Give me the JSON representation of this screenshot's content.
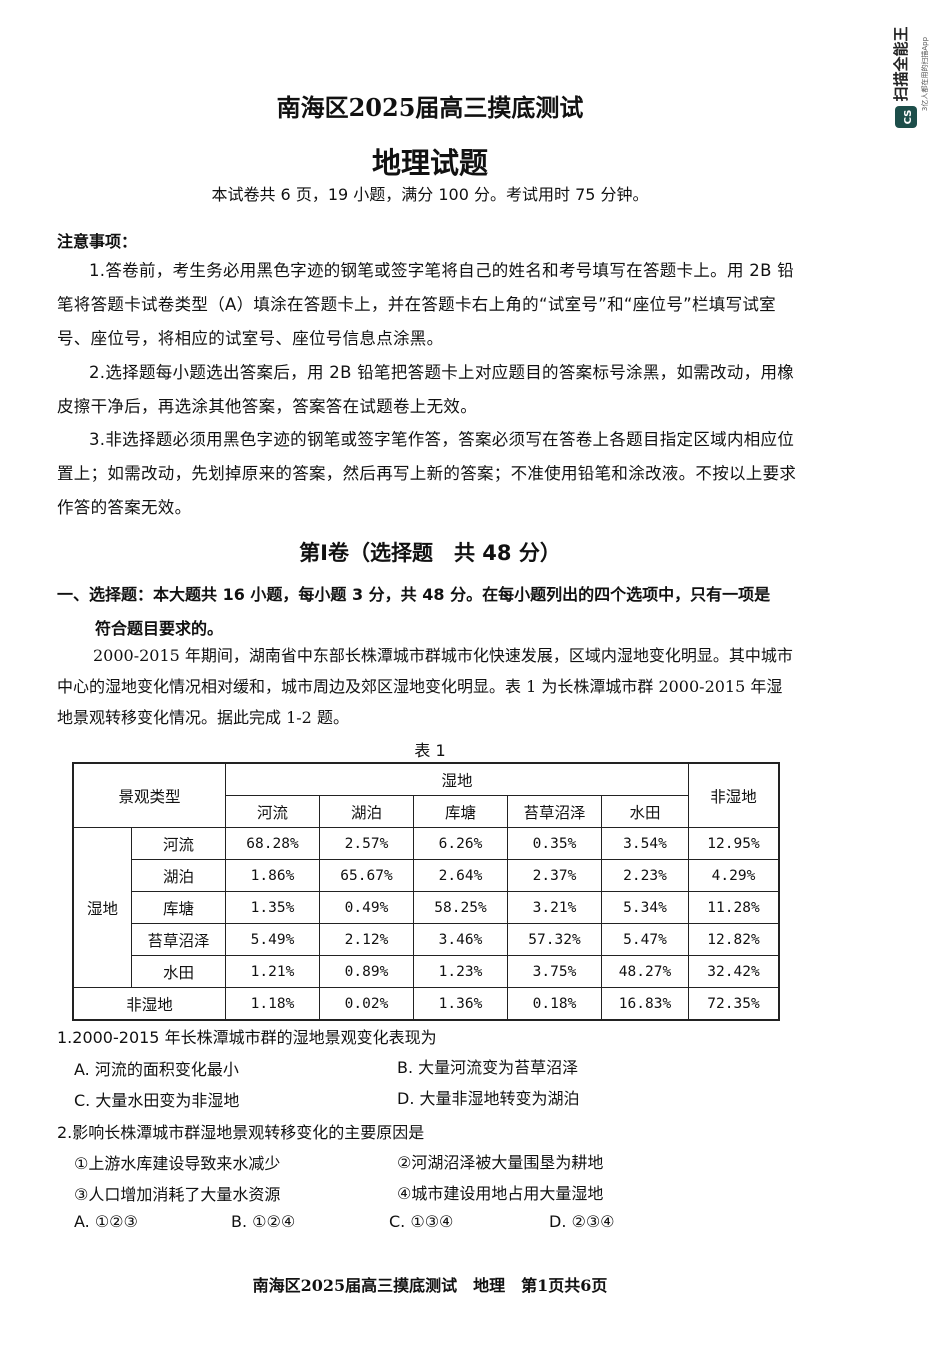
{
  "watermark": {
    "brand": "扫描全能王",
    "tagline": "3亿人都在用的扫描App",
    "logo_text": "CS"
  },
  "header": {
    "title": "南海区2025届高三摸底测试",
    "subject": "地理试题",
    "info": "本试卷共 6 页，19 小题，满分 100 分。考试用时 75 分钟。"
  },
  "notes": {
    "heading": "注意事项：",
    "items": [
      "1.答卷前，考生务必用黑色字迹的钢笔或签字笔将自己的姓名和考号填写在答题卡上。用 2B 铅笔将答题卡试卷类型（A）填涂在答题卡上，并在答题卡右上角的“试室号”和“座位号”栏填写试室号、座位号，将相应的试室号、座位号信息点涂黑。",
      "2.选择题每小题选出答案后，用 2B 铅笔把答题卡上对应题目的答案标号涂黑，如需改动，用橡皮擦干净后，再选涂其他答案，答案答在试题卷上无效。",
      "3.非选择题必须用黑色字迹的钢笔或签字笔作答，答案必须写在答卷上各题目指定区域内相应位置上；如需改动，先划掉原来的答案，然后再写上新的答案；不准使用铅笔和涂改液。不按以上要求作答的答案无效。"
    ]
  },
  "section": {
    "title": "第Ⅰ卷（选择题　共 48 分）",
    "instruction_1": "一、选择题：本大题共 16 小题，每小题 3 分，共 48 分。在每小题列出的四个选项中，只有一项是",
    "instruction_2": "符合题目要求的。"
  },
  "passage": "2000-2015 年期间，湖南省中东部长株潭城市群城市化快速发展，区域内湿地变化明显。其中城市中心的湿地变化情况相对缓和，城市周边及郊区湿地变化明显。表 1 为长株潭城市群 2000-2015 年湿地景观转移变化情况。据此完成 1-2 题。",
  "table": {
    "caption": "表 1",
    "corner": "景观类型",
    "group_wetland": "湿地",
    "nonwetland": "非湿地",
    "columns": [
      "河流",
      "湖泊",
      "库塘",
      "苔草沼泽",
      "水田"
    ],
    "rows": [
      {
        "label": "河流",
        "values": [
          "68.28%",
          "2.57%",
          "6.26%",
          "0.35%",
          "3.54%",
          "12.95%"
        ]
      },
      {
        "label": "湖泊",
        "values": [
          "1.86%",
          "65.67%",
          "2.64%",
          "2.37%",
          "2.23%",
          "4.29%"
        ]
      },
      {
        "label": "库塘",
        "values": [
          "1.35%",
          "0.49%",
          "58.25%",
          "3.21%",
          "5.34%",
          "11.28%"
        ]
      },
      {
        "label": "苔草沼泽",
        "values": [
          "5.49%",
          "2.12%",
          "3.46%",
          "57.32%",
          "5.47%",
          "12.82%"
        ]
      },
      {
        "label": "水田",
        "values": [
          "1.21%",
          "0.89%",
          "1.23%",
          "3.75%",
          "48.27%",
          "32.42%"
        ]
      },
      {
        "label": "非湿地",
        "values": [
          "1.18%",
          "0.02%",
          "1.36%",
          "0.18%",
          "16.83%",
          "72.35%"
        ]
      }
    ]
  },
  "questions": [
    {
      "stem": "1.2000-2015 年长株潭城市群的湿地景观变化表现为",
      "options": [
        "A. 河流的面积变化最小",
        "B. 大量河流变为苔草沼泽",
        "C. 大量水田变为非湿地",
        "D. 大量非湿地转变为湖泊"
      ]
    },
    {
      "stem": "2.影响长株潭城市群湿地景观转移变化的主要原因是",
      "statements": [
        "①上游水库建设导致来水减少",
        "②河湖沼泽被大量围垦为耕地",
        "③人口增加消耗了大量水资源",
        "④城市建设用地占用大量湿地"
      ],
      "options": [
        "A. ①②③",
        "B. ①②④",
        "C. ①③④",
        "D. ②③④"
      ]
    }
  ],
  "footer": "南海区2025届高三摸底测试　地理　第1页共6页"
}
